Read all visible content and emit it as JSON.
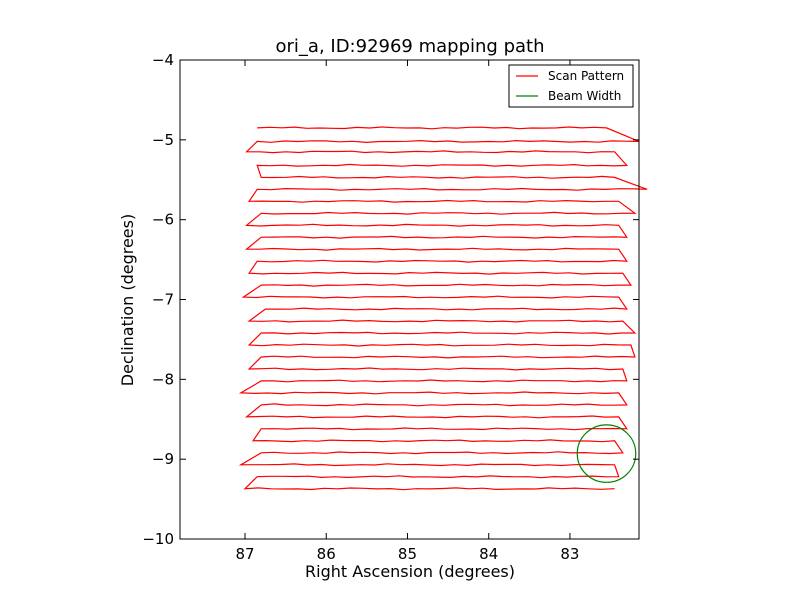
{
  "chart_data": {
    "type": "line",
    "title": "ori_a, ID:92969 mapping path",
    "xlabel": "Right Ascension (degrees)",
    "ylabel": "Declination (degrees)",
    "xlim": [
      87.8,
      82.15
    ],
    "ylim": [
      -10,
      -4
    ],
    "x_axis_inverted": true,
    "xticks": [
      87,
      86,
      85,
      84,
      83
    ],
    "xtick_labels": [
      "87",
      "86",
      "85",
      "84",
      "83"
    ],
    "yticks": [
      -4,
      -5,
      -6,
      -7,
      -8,
      -9,
      -10
    ],
    "ytick_labels": [
      "−4",
      "−5",
      "−6",
      "−7",
      "−8",
      "−9",
      "−10"
    ],
    "grid": false,
    "legend_position": "top-right",
    "series": [
      {
        "name": "Scan Pattern",
        "color": "#ff0000",
        "style": "boustrophedon raster scan",
        "rows": [
          {
            "dec": -4.85,
            "ra_start": 86.85,
            "ra_end": 82.55
          },
          {
            "dec": -5.02,
            "ra_start": 82.15,
            "ra_end": 86.85
          },
          {
            "dec": -5.15,
            "ra_start": 86.98,
            "ra_end": 82.45
          },
          {
            "dec": -5.32,
            "ra_start": 82.3,
            "ra_end": 86.85
          },
          {
            "dec": -5.47,
            "ra_start": 86.8,
            "ra_end": 82.45
          },
          {
            "dec": -5.62,
            "ra_start": 82.05,
            "ra_end": 86.85
          },
          {
            "dec": -5.77,
            "ra_start": 86.95,
            "ra_end": 82.4
          },
          {
            "dec": -5.92,
            "ra_start": 82.2,
            "ra_end": 86.8
          },
          {
            "dec": -6.07,
            "ra_start": 86.98,
            "ra_end": 82.4
          },
          {
            "dec": -6.22,
            "ra_start": 82.3,
            "ra_end": 86.8
          },
          {
            "dec": -6.37,
            "ra_start": 86.98,
            "ra_end": 82.4
          },
          {
            "dec": -6.52,
            "ra_start": 82.3,
            "ra_end": 86.85
          },
          {
            "dec": -6.67,
            "ra_start": 86.95,
            "ra_end": 82.35
          },
          {
            "dec": -6.82,
            "ra_start": 82.25,
            "ra_end": 86.8
          },
          {
            "dec": -6.97,
            "ra_start": 87.02,
            "ra_end": 82.4
          },
          {
            "dec": -7.12,
            "ra_start": 82.3,
            "ra_end": 86.75
          },
          {
            "dec": -7.27,
            "ra_start": 86.95,
            "ra_end": 82.35
          },
          {
            "dec": -7.42,
            "ra_start": 82.2,
            "ra_end": 86.8
          },
          {
            "dec": -7.57,
            "ra_start": 86.95,
            "ra_end": 82.25
          },
          {
            "dec": -7.72,
            "ra_start": 82.2,
            "ra_end": 86.8
          },
          {
            "dec": -7.87,
            "ra_start": 86.95,
            "ra_end": 82.35
          },
          {
            "dec": -8.02,
            "ra_start": 82.3,
            "ra_end": 86.8
          },
          {
            "dec": -8.17,
            "ra_start": 87.05,
            "ra_end": 82.4
          },
          {
            "dec": -8.32,
            "ra_start": 82.3,
            "ra_end": 86.8
          },
          {
            "dec": -8.47,
            "ra_start": 86.98,
            "ra_end": 82.4
          },
          {
            "dec": -8.62,
            "ra_start": 82.3,
            "ra_end": 86.8
          },
          {
            "dec": -8.77,
            "ra_start": 86.9,
            "ra_end": 82.45
          },
          {
            "dec": -8.92,
            "ra_start": 82.35,
            "ra_end": 86.8
          },
          {
            "dec": -9.07,
            "ra_start": 87.05,
            "ra_end": 82.45
          },
          {
            "dec": -9.22,
            "ra_start": 82.4,
            "ra_end": 86.85
          },
          {
            "dec": -9.37,
            "ra_start": 87.0,
            "ra_end": 82.45
          }
        ]
      },
      {
        "name": "Beam Width",
        "color": "#008000",
        "style": "circle",
        "center_ra": 82.55,
        "center_dec": -8.93,
        "radius_deg": 0.36
      }
    ]
  }
}
